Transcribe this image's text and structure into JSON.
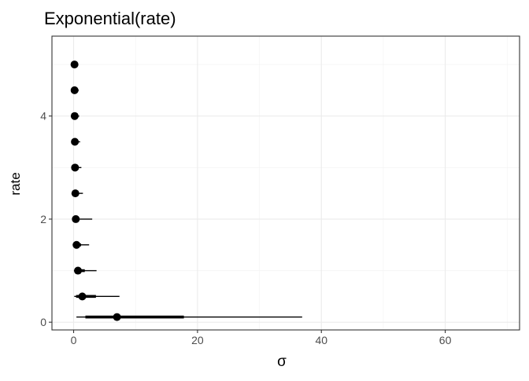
{
  "chart_data": {
    "type": "scatter",
    "title": "Exponential(rate)",
    "xlabel": "σ",
    "ylabel": "rate",
    "xlim": [
      -3.5,
      72
    ],
    "ylim": [
      -0.15,
      5.55
    ],
    "x_ticks": [
      0,
      20,
      40,
      60
    ],
    "x_tick_labels": [
      "0",
      "20",
      "40",
      "60"
    ],
    "y_ticks": [
      0,
      2,
      4
    ],
    "y_tick_labels": [
      "0",
      "2",
      "4"
    ],
    "grid": true,
    "legend": "none",
    "point_color": "#000000",
    "points": [
      {
        "rate": 0.1,
        "median": 7.0,
        "thick": [
          1.9,
          17.8
        ],
        "thin": [
          0.45,
          36.9
        ]
      },
      {
        "rate": 0.5,
        "median": 1.4,
        "thick": [
          0.4,
          3.6
        ],
        "thin": [
          0.1,
          7.4
        ]
      },
      {
        "rate": 1.0,
        "median": 0.7,
        "thick": [
          0.2,
          1.8
        ],
        "thin": [
          0.05,
          3.7
        ]
      },
      {
        "rate": 1.5,
        "median": 0.47,
        "thick": [
          0.13,
          1.2
        ],
        "thin": [
          0.03,
          2.5
        ]
      },
      {
        "rate": 2.0,
        "median": 0.35,
        "thick": [
          0.1,
          0.9
        ],
        "thin": [
          0.02,
          3.0
        ]
      },
      {
        "rate": 2.5,
        "median": 0.28,
        "thick": [
          0.08,
          0.72
        ],
        "thin": [
          0.02,
          1.5
        ]
      },
      {
        "rate": 3.0,
        "median": 0.23,
        "thick": [
          0.06,
          0.6
        ],
        "thin": [
          0.015,
          1.25
        ]
      },
      {
        "rate": 3.5,
        "median": 0.2,
        "thick": [
          0.05,
          0.52
        ],
        "thin": [
          0.01,
          1.05
        ]
      },
      {
        "rate": 4.0,
        "median": 0.17,
        "thick": [
          0.05,
          0.45
        ],
        "thin": [
          0.01,
          0.9
        ]
      },
      {
        "rate": 4.5,
        "median": 0.15,
        "thick": [
          0.04,
          0.4
        ],
        "thin": [
          0.01,
          0.82
        ]
      },
      {
        "rate": 5.0,
        "median": 0.14,
        "thick": [
          0.04,
          0.36
        ],
        "thin": [
          0.01,
          0.74
        ]
      }
    ]
  }
}
